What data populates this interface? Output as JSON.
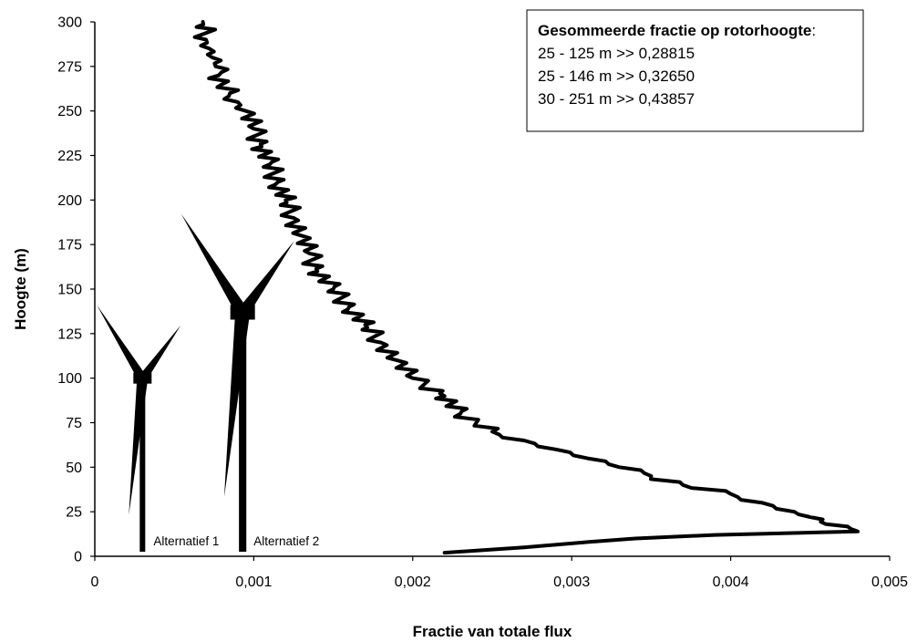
{
  "chart_data": {
    "type": "line",
    "xlabel": "Fractie van totale flux",
    "ylabel": "Hoogte (m)",
    "xlim": [
      0,
      0.005
    ],
    "ylim": [
      0,
      300
    ],
    "x_ticks": [
      "0",
      "0,001",
      "0,002",
      "0,003",
      "0,004",
      "0,005"
    ],
    "y_ticks": [
      "0",
      "25",
      "50",
      "75",
      "100",
      "125",
      "150",
      "175",
      "200",
      "225",
      "250",
      "275",
      "300"
    ],
    "grid": false,
    "legend": {
      "title": "Gesommeerde fractie op rotorhoogte",
      "title_suffix": ":",
      "entries": [
        "25 - 125 m >> 0,28815",
        "25 - 146 m >> 0,32650",
        "30 - 251 m >> 0,43857"
      ],
      "placement": "top-right"
    },
    "series": [
      {
        "x": [
          0.0022,
          0.0027,
          0.0031,
          0.0034,
          0.0039,
          0.0048,
          0.0046,
          0.0045,
          0.0044,
          0.0042,
          0.004,
          0.0037,
          0.0035,
          0.0033,
          0.0031,
          0.0029,
          0.0027,
          0.0025,
          0.0024,
          0.0023,
          0.0022,
          0.002,
          0.0019,
          0.0018,
          0.0017,
          0.0016,
          0.0015,
          0.0014,
          0.00135,
          0.0013,
          0.00125,
          0.0012,
          0.00115,
          0.0011,
          0.00105,
          0.001,
          0.00095,
          0.0009,
          0.00085,
          0.0008,
          0.00078,
          0.00076,
          0.00074,
          0.00072,
          0.0007,
          0.00068
        ],
        "y": [
          2,
          5,
          8,
          10,
          12,
          14,
          18,
          22,
          25,
          30,
          35,
          40,
          45,
          50,
          55,
          60,
          65,
          70,
          75,
          80,
          90,
          100,
          110,
          120,
          130,
          140,
          150,
          160,
          170,
          180,
          190,
          200,
          210,
          220,
          230,
          240,
          250,
          255,
          260,
          265,
          270,
          275,
          280,
          285,
          290,
          300
        ]
      }
    ],
    "annotations": [
      {
        "text": "Alternatief 1",
        "hub_height": 100,
        "x": 0.0003
      },
      {
        "text": "Alternatief 2",
        "hub_height": 137,
        "x": 0.00093
      }
    ]
  }
}
